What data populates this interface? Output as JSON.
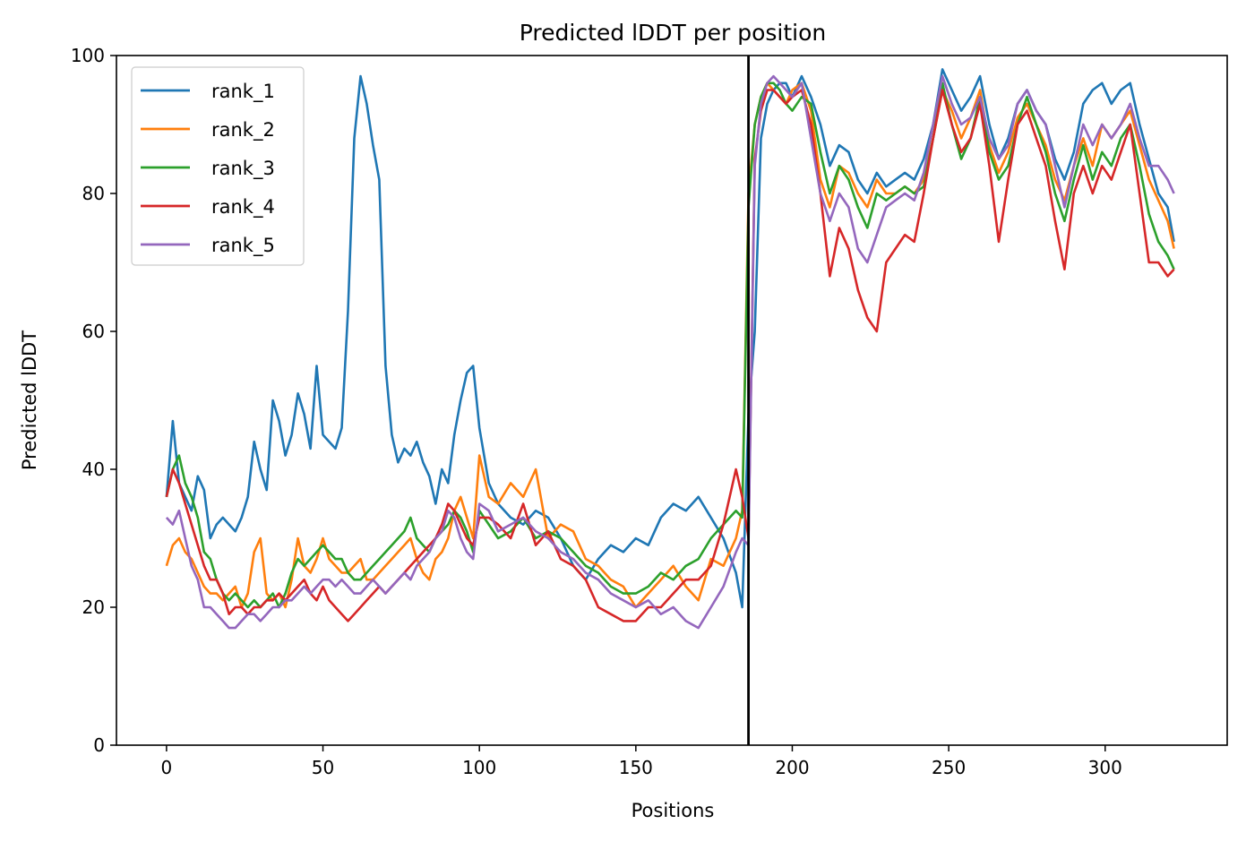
{
  "chart_data": {
    "type": "line",
    "title": "Predicted lDDT per position",
    "xlabel": "Positions",
    "ylabel": "Predicted lDDT",
    "xlim": [
      -16,
      339
    ],
    "ylim": [
      0,
      100
    ],
    "xticks": [
      0,
      50,
      100,
      150,
      200,
      250,
      300
    ],
    "yticks": [
      0,
      20,
      40,
      60,
      80,
      100
    ],
    "grid": false,
    "legend_position": "top-left",
    "vline": {
      "x": 186,
      "color": "#000000"
    },
    "series": [
      {
        "name": "rank_1",
        "color": "#1f77b4",
        "x": [
          0,
          2,
          4,
          6,
          8,
          10,
          12,
          14,
          16,
          18,
          20,
          22,
          24,
          26,
          28,
          30,
          32,
          34,
          36,
          38,
          40,
          42,
          44,
          46,
          48,
          50,
          52,
          54,
          56,
          58,
          60,
          62,
          64,
          66,
          68,
          70,
          72,
          74,
          76,
          78,
          80,
          82,
          84,
          86,
          88,
          90,
          92,
          94,
          96,
          98,
          100,
          103,
          106,
          110,
          114,
          118,
          122,
          126,
          130,
          134,
          138,
          142,
          146,
          150,
          154,
          158,
          162,
          166,
          170,
          174,
          178,
          182,
          184,
          186,
          188,
          190,
          192,
          194,
          196,
          198,
          200,
          203,
          206,
          209,
          212,
          215,
          218,
          221,
          224,
          227,
          230,
          233,
          236,
          239,
          242,
          245,
          248,
          251,
          254,
          257,
          260,
          263,
          266,
          269,
          272,
          275,
          278,
          281,
          284,
          287,
          290,
          293,
          296,
          299,
          302,
          305,
          308,
          311,
          314,
          317,
          320,
          322
        ],
        "y": [
          36,
          47,
          38,
          36,
          34,
          39,
          37,
          30,
          32,
          33,
          32,
          31,
          33,
          36,
          44,
          40,
          37,
          50,
          47,
          42,
          45,
          51,
          48,
          43,
          55,
          45,
          44,
          43,
          46,
          63,
          88,
          97,
          93,
          87,
          82,
          55,
          45,
          41,
          43,
          42,
          44,
          41,
          39,
          35,
          40,
          38,
          45,
          50,
          54,
          55,
          46,
          38,
          35,
          33,
          32,
          34,
          33,
          30,
          26,
          24,
          27,
          29,
          28,
          30,
          29,
          33,
          35,
          34,
          36,
          33,
          30,
          25,
          20,
          48,
          60,
          88,
          93,
          95,
          96,
          96,
          94,
          97,
          94,
          90,
          84,
          87,
          86,
          82,
          80,
          83,
          81,
          82,
          83,
          82,
          85,
          90,
          98,
          95,
          92,
          94,
          97,
          90,
          85,
          88,
          93,
          95,
          92,
          90,
          85,
          82,
          86,
          93,
          95,
          96,
          93,
          95,
          96,
          90,
          85,
          80,
          78,
          73
        ]
      },
      {
        "name": "rank_2",
        "color": "#ff7f0e",
        "x": [
          0,
          2,
          4,
          6,
          8,
          10,
          12,
          14,
          16,
          18,
          20,
          22,
          24,
          26,
          28,
          30,
          32,
          34,
          36,
          38,
          40,
          42,
          44,
          46,
          48,
          50,
          52,
          54,
          56,
          58,
          60,
          62,
          64,
          66,
          68,
          70,
          72,
          74,
          76,
          78,
          80,
          82,
          84,
          86,
          88,
          90,
          92,
          94,
          96,
          98,
          100,
          103,
          106,
          110,
          114,
          118,
          122,
          126,
          130,
          134,
          138,
          142,
          146,
          150,
          154,
          158,
          162,
          166,
          170,
          174,
          178,
          182,
          184,
          186,
          188,
          190,
          192,
          194,
          196,
          198,
          200,
          203,
          206,
          209,
          212,
          215,
          218,
          221,
          224,
          227,
          230,
          233,
          236,
          239,
          242,
          245,
          248,
          251,
          254,
          257,
          260,
          263,
          266,
          269,
          272,
          275,
          278,
          281,
          284,
          287,
          290,
          293,
          296,
          299,
          302,
          305,
          308,
          311,
          314,
          317,
          320,
          322
        ],
        "y": [
          26,
          29,
          30,
          28,
          27,
          25,
          23,
          22,
          22,
          21,
          22,
          23,
          20,
          22,
          28,
          30,
          22,
          21,
          22,
          20,
          24,
          30,
          26,
          25,
          27,
          30,
          27,
          26,
          25,
          25,
          26,
          27,
          24,
          24,
          25,
          26,
          27,
          28,
          29,
          30,
          27,
          25,
          24,
          27,
          28,
          30,
          34,
          36,
          33,
          30,
          42,
          36,
          35,
          38,
          36,
          40,
          30,
          32,
          31,
          27,
          26,
          24,
          23,
          20,
          22,
          24,
          26,
          23,
          21,
          27,
          26,
          30,
          34,
          80,
          90,
          94,
          96,
          95,
          94,
          93,
          95,
          96,
          92,
          82,
          78,
          84,
          83,
          80,
          78,
          82,
          80,
          80,
          81,
          80,
          82,
          88,
          95,
          92,
          88,
          91,
          95,
          87,
          83,
          86,
          91,
          93,
          90,
          87,
          82,
          79,
          84,
          88,
          84,
          90,
          88,
          90,
          92,
          87,
          82,
          79,
          76,
          72
        ]
      },
      {
        "name": "rank_3",
        "color": "#2ca02c",
        "x": [
          0,
          2,
          4,
          6,
          8,
          10,
          12,
          14,
          16,
          18,
          20,
          22,
          24,
          26,
          28,
          30,
          32,
          34,
          36,
          38,
          40,
          42,
          44,
          46,
          48,
          50,
          52,
          54,
          56,
          58,
          60,
          62,
          64,
          66,
          68,
          70,
          72,
          74,
          76,
          78,
          80,
          82,
          84,
          86,
          88,
          90,
          92,
          94,
          96,
          98,
          100,
          103,
          106,
          110,
          114,
          118,
          122,
          126,
          130,
          134,
          138,
          142,
          146,
          150,
          154,
          158,
          162,
          166,
          170,
          174,
          178,
          182,
          184,
          186,
          188,
          190,
          192,
          194,
          196,
          198,
          200,
          203,
          206,
          209,
          212,
          215,
          218,
          221,
          224,
          227,
          230,
          233,
          236,
          239,
          242,
          245,
          248,
          251,
          254,
          257,
          260,
          263,
          266,
          269,
          272,
          275,
          278,
          281,
          284,
          287,
          290,
          293,
          296,
          299,
          302,
          305,
          308,
          311,
          314,
          317,
          320,
          322
        ],
        "y": [
          36,
          40,
          42,
          38,
          36,
          33,
          28,
          27,
          24,
          22,
          21,
          22,
          21,
          20,
          21,
          20,
          21,
          22,
          20,
          22,
          25,
          27,
          26,
          27,
          28,
          29,
          28,
          27,
          27,
          25,
          24,
          24,
          25,
          26,
          27,
          28,
          29,
          30,
          31,
          33,
          30,
          29,
          28,
          30,
          31,
          32,
          34,
          33,
          31,
          28,
          34,
          32,
          30,
          31,
          33,
          30,
          31,
          30,
          28,
          26,
          25,
          23,
          22,
          22,
          23,
          25,
          24,
          26,
          27,
          30,
          32,
          34,
          33,
          78,
          90,
          94,
          96,
          96,
          95,
          93,
          92,
          94,
          93,
          86,
          80,
          84,
          82,
          78,
          75,
          80,
          79,
          80,
          81,
          80,
          81,
          88,
          96,
          90,
          85,
          88,
          94,
          86,
          82,
          84,
          90,
          94,
          90,
          86,
          80,
          76,
          82,
          87,
          82,
          86,
          84,
          88,
          90,
          84,
          77,
          73,
          71,
          69
        ]
      },
      {
        "name": "rank_4",
        "color": "#d62728",
        "x": [
          0,
          2,
          4,
          6,
          8,
          10,
          12,
          14,
          16,
          18,
          20,
          22,
          24,
          26,
          28,
          30,
          32,
          34,
          36,
          38,
          40,
          42,
          44,
          46,
          48,
          50,
          52,
          54,
          56,
          58,
          60,
          62,
          64,
          66,
          68,
          70,
          72,
          74,
          76,
          78,
          80,
          82,
          84,
          86,
          88,
          90,
          92,
          94,
          96,
          98,
          100,
          103,
          106,
          110,
          114,
          118,
          122,
          126,
          130,
          134,
          138,
          142,
          146,
          150,
          154,
          158,
          162,
          166,
          170,
          174,
          178,
          182,
          184,
          186,
          188,
          190,
          192,
          194,
          196,
          198,
          200,
          203,
          206,
          209,
          212,
          215,
          218,
          221,
          224,
          227,
          230,
          233,
          236,
          239,
          242,
          245,
          248,
          251,
          254,
          257,
          260,
          263,
          266,
          269,
          272,
          275,
          278,
          281,
          284,
          287,
          290,
          293,
          296,
          299,
          302,
          305,
          308,
          311,
          314,
          317,
          320,
          322
        ],
        "y": [
          36,
          40,
          38,
          35,
          32,
          29,
          26,
          24,
          24,
          22,
          19,
          20,
          20,
          19,
          20,
          20,
          21,
          21,
          22,
          21,
          22,
          23,
          24,
          22,
          21,
          23,
          21,
          20,
          19,
          18,
          19,
          20,
          21,
          22,
          23,
          22,
          23,
          24,
          25,
          26,
          27,
          28,
          29,
          30,
          32,
          35,
          34,
          32,
          30,
          29,
          33,
          33,
          32,
          30,
          35,
          29,
          31,
          27,
          26,
          24,
          20,
          19,
          18,
          18,
          20,
          20,
          22,
          24,
          24,
          26,
          32,
          40,
          36,
          30,
          85,
          92,
          95,
          95,
          94,
          93,
          94,
          95,
          90,
          80,
          68,
          75,
          72,
          66,
          62,
          60,
          70,
          72,
          74,
          73,
          80,
          88,
          95,
          90,
          86,
          88,
          93,
          84,
          73,
          82,
          90,
          92,
          88,
          84,
          76,
          69,
          80,
          84,
          80,
          84,
          82,
          86,
          90,
          80,
          70,
          70,
          68,
          69
        ]
      },
      {
        "name": "rank_5",
        "color": "#9467bd",
        "x": [
          0,
          2,
          4,
          6,
          8,
          10,
          12,
          14,
          16,
          18,
          20,
          22,
          24,
          26,
          28,
          30,
          32,
          34,
          36,
          38,
          40,
          42,
          44,
          46,
          48,
          50,
          52,
          54,
          56,
          58,
          60,
          62,
          64,
          66,
          68,
          70,
          72,
          74,
          76,
          78,
          80,
          82,
          84,
          86,
          88,
          90,
          92,
          94,
          96,
          98,
          100,
          103,
          106,
          110,
          114,
          118,
          122,
          126,
          130,
          134,
          138,
          142,
          146,
          150,
          154,
          158,
          162,
          166,
          170,
          174,
          178,
          182,
          184,
          186,
          188,
          190,
          192,
          194,
          196,
          198,
          200,
          203,
          206,
          209,
          212,
          215,
          218,
          221,
          224,
          227,
          230,
          233,
          236,
          239,
          242,
          245,
          248,
          251,
          254,
          257,
          260,
          263,
          266,
          269,
          272,
          275,
          278,
          281,
          284,
          287,
          290,
          293,
          296,
          299,
          302,
          305,
          308,
          311,
          314,
          317,
          320,
          322
        ],
        "y": [
          33,
          32,
          34,
          30,
          26,
          24,
          20,
          20,
          19,
          18,
          17,
          17,
          18,
          19,
          19,
          18,
          19,
          20,
          20,
          21,
          21,
          22,
          23,
          22,
          23,
          24,
          24,
          23,
          24,
          23,
          22,
          22,
          23,
          24,
          23,
          22,
          23,
          24,
          25,
          24,
          26,
          27,
          28,
          30,
          31,
          34,
          33,
          30,
          28,
          27,
          35,
          34,
          31,
          32,
          33,
          31,
          30,
          28,
          27,
          25,
          24,
          22,
          21,
          20,
          21,
          19,
          20,
          18,
          17,
          20,
          23,
          28,
          30,
          29,
          84,
          93,
          96,
          97,
          96,
          95,
          94,
          96,
          88,
          80,
          76,
          80,
          78,
          72,
          70,
          74,
          78,
          79,
          80,
          79,
          83,
          90,
          97,
          93,
          90,
          91,
          94,
          88,
          85,
          87,
          93,
          95,
          92,
          90,
          84,
          78,
          84,
          90,
          87,
          90,
          88,
          90,
          93,
          88,
          84,
          84,
          82,
          80
        ]
      }
    ]
  }
}
